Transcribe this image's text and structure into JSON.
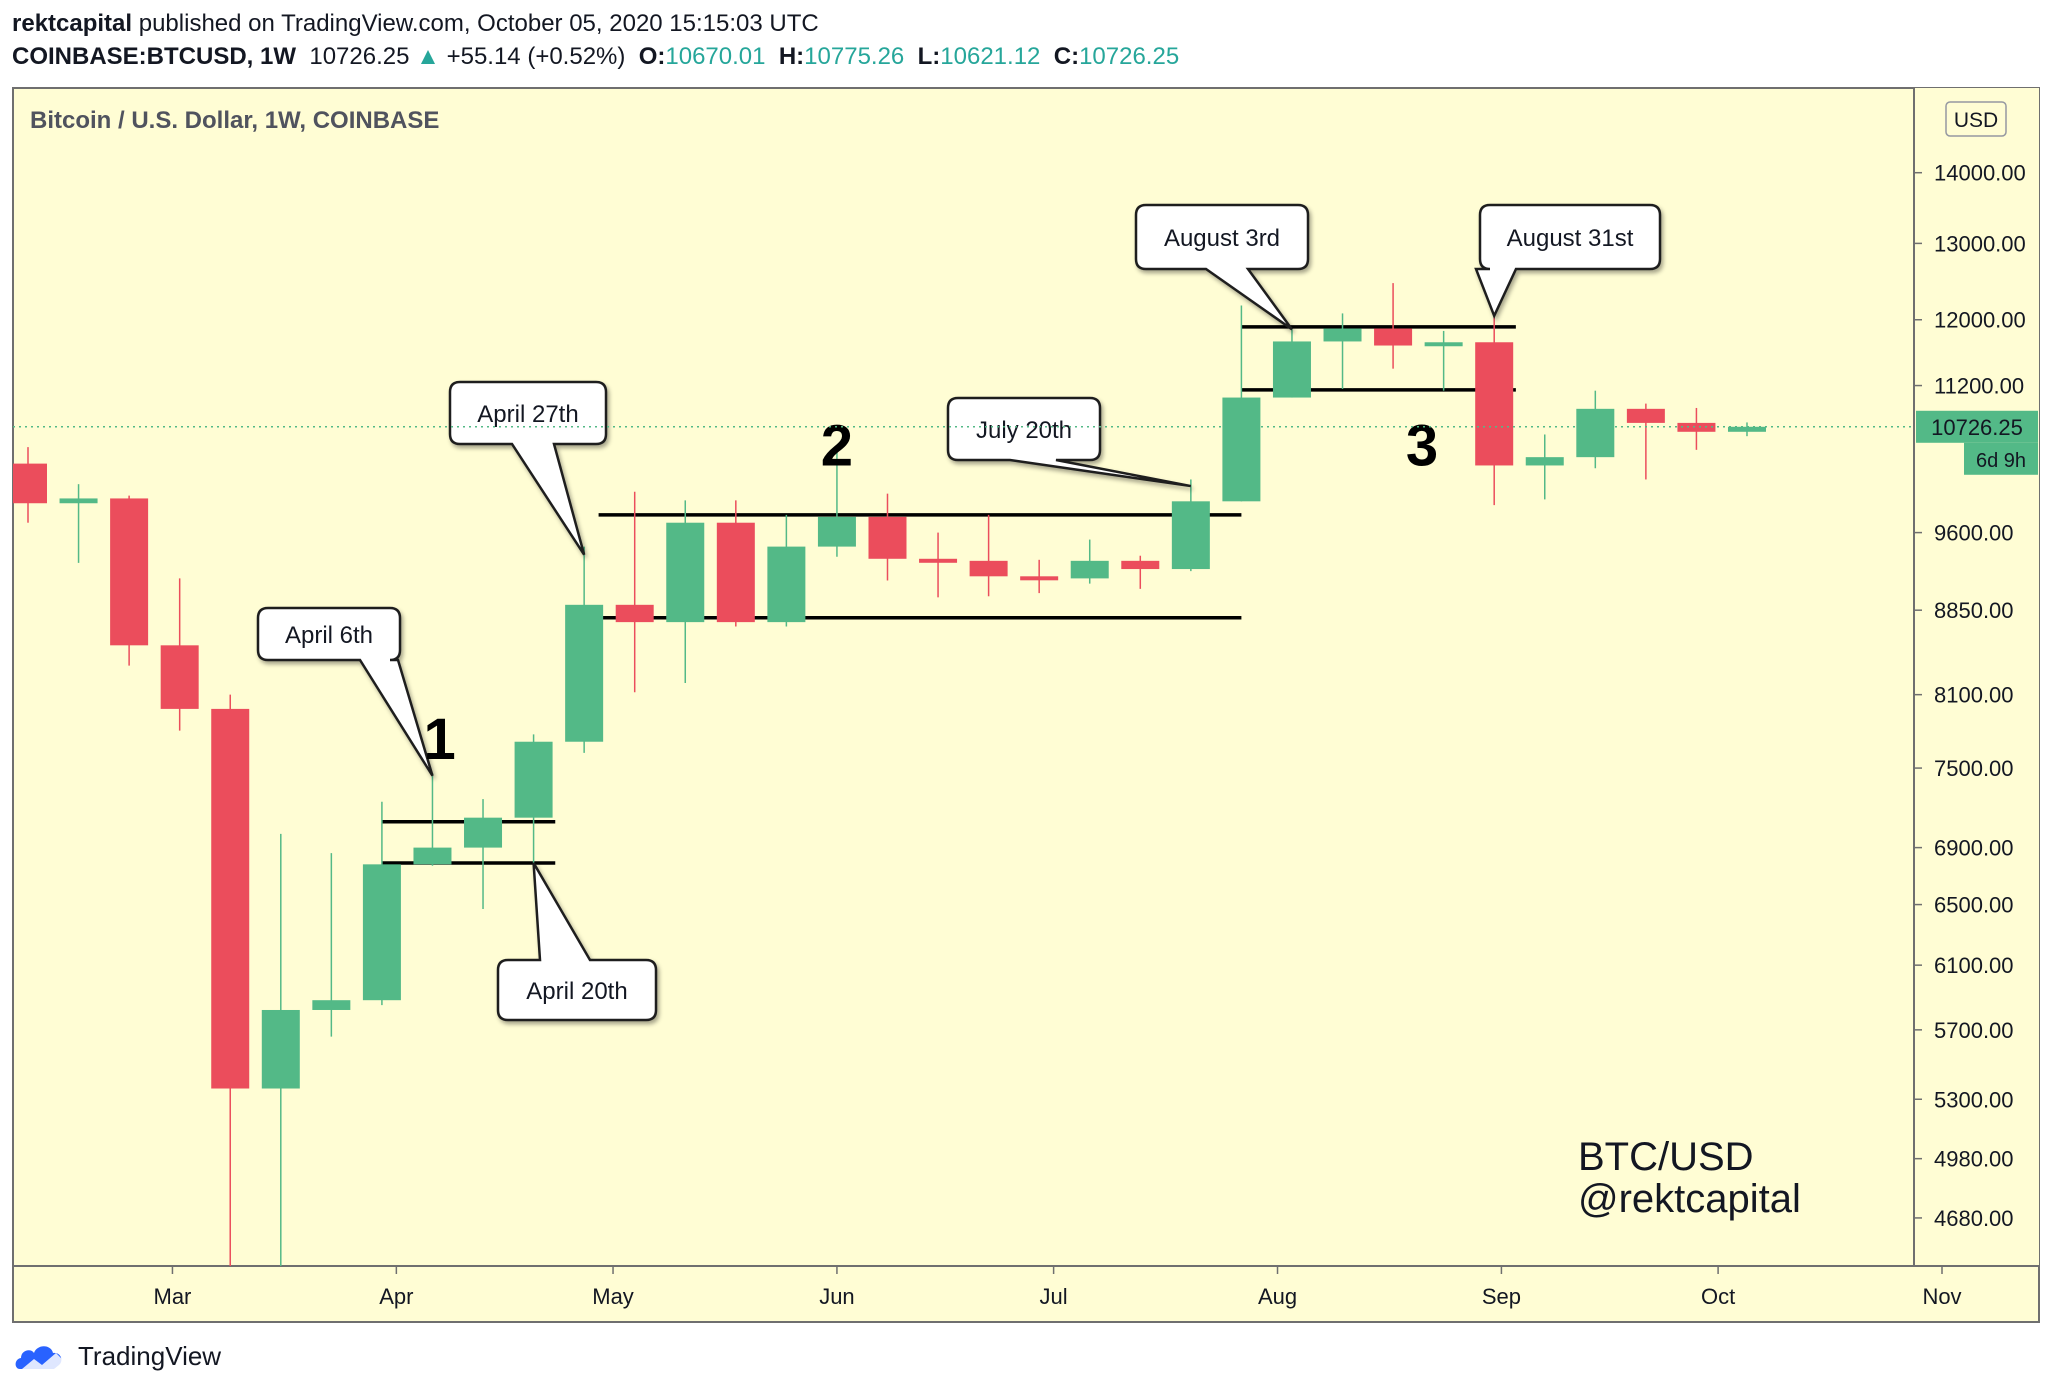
{
  "header": {
    "author": "rektcapital",
    "published_text": "published on TradingView.com, October 05, 2020 15:15:03 UTC",
    "symbol": "COINBASE:BTCUSD, 1W",
    "last": "10726.25",
    "change_arrow": "▲",
    "change": "+55.14 (+0.52%)",
    "open_label": "O:",
    "open": "10670.01",
    "high_label": "H:",
    "high": "10775.26",
    "low_label": "L:",
    "low": "10621.12",
    "close_label": "C:",
    "close": "10726.25"
  },
  "footer": {
    "brand": "TradingView",
    "logo_icon": "tradingview-cloud-icon"
  },
  "colors": {
    "background": "#fffdd4",
    "up": "#53b987",
    "down": "#eb4d5c",
    "text": "#131722",
    "last_price_label": "#53b987"
  },
  "chart_data": {
    "type": "candlestick",
    "title": "Bitcoin / U.S. Dollar, 1W, COINBASE",
    "currency_label": "USD",
    "y_scale": "log",
    "ylim": [
      4450,
      15300
    ],
    "y_ticks": [
      14000,
      13000,
      12000,
      11200,
      9600,
      8850,
      8100,
      7500,
      6900,
      6500,
      6100,
      5700,
      5300,
      4980,
      4680
    ],
    "y_tick_labels": [
      "14000.00",
      "13000.00",
      "12000.00",
      "11200.00",
      "9600.00",
      "8850.00",
      "8100.00",
      "7500.00",
      "6900.00",
      "6500.00",
      "6100.00",
      "5700.00",
      "5300.00",
      "4980.00",
      "4680.00"
    ],
    "x_start": "2020-02-10",
    "x_end": "2020-11-01",
    "x_ticks": [
      {
        "date": "2020-03-01",
        "label": "Mar"
      },
      {
        "date": "2020-04-01",
        "label": "Apr"
      },
      {
        "date": "2020-05-01",
        "label": "May"
      },
      {
        "date": "2020-06-01",
        "label": "Jun"
      },
      {
        "date": "2020-07-01",
        "label": "Jul"
      },
      {
        "date": "2020-08-01",
        "label": "Aug"
      },
      {
        "date": "2020-09-01",
        "label": "Sep"
      },
      {
        "date": "2020-10-01",
        "label": "Oct"
      },
      {
        "date": "2020-11-01",
        "label": "Nov"
      }
    ],
    "last_price": "10726.25",
    "countdown": "6d 9h",
    "candles": [
      {
        "date": "2020-02-10",
        "open": 10320,
        "high": 10500,
        "low": 9700,
        "close": 9900
      },
      {
        "date": "2020-02-17",
        "open": 9900,
        "high": 10100,
        "low": 9300,
        "close": 9950
      },
      {
        "date": "2020-02-24",
        "open": 9950,
        "high": 9980,
        "low": 8350,
        "close": 8530
      },
      {
        "date": "2020-03-02",
        "open": 8530,
        "high": 9150,
        "low": 7800,
        "close": 7980
      },
      {
        "date": "2020-03-09",
        "open": 7980,
        "high": 8100,
        "low": 3850,
        "close": 5360
      },
      {
        "date": "2020-03-16",
        "open": 5360,
        "high": 7000,
        "low": 4450,
        "close": 5820
      },
      {
        "date": "2020-03-23",
        "open": 5820,
        "high": 6860,
        "low": 5660,
        "close": 5880
      },
      {
        "date": "2020-03-30",
        "open": 5880,
        "high": 7240,
        "low": 5850,
        "close": 6780
      },
      {
        "date": "2020-04-06",
        "open": 6780,
        "high": 7460,
        "low": 6770,
        "close": 6900
      },
      {
        "date": "2020-04-13",
        "open": 6900,
        "high": 7260,
        "low": 6470,
        "close": 7120
      },
      {
        "date": "2020-04-20",
        "open": 7120,
        "high": 7770,
        "low": 6780,
        "close": 7710
      },
      {
        "date": "2020-04-27",
        "open": 7710,
        "high": 9460,
        "low": 7620,
        "close": 8900
      },
      {
        "date": "2020-05-04",
        "open": 8900,
        "high": 10020,
        "low": 8120,
        "close": 8740
      },
      {
        "date": "2020-05-11",
        "open": 8740,
        "high": 9930,
        "low": 8200,
        "close": 9700
      },
      {
        "date": "2020-05-18",
        "open": 9700,
        "high": 9930,
        "low": 8700,
        "close": 8740
      },
      {
        "date": "2020-05-25",
        "open": 8740,
        "high": 9780,
        "low": 8700,
        "close": 9460
      },
      {
        "date": "2020-06-01",
        "open": 9460,
        "high": 10440,
        "low": 9360,
        "close": 9760
      },
      {
        "date": "2020-06-08",
        "open": 9760,
        "high": 10000,
        "low": 9130,
        "close": 9340
      },
      {
        "date": "2020-06-15",
        "open": 9340,
        "high": 9600,
        "low": 8970,
        "close": 9320
      },
      {
        "date": "2020-06-22",
        "open": 9320,
        "high": 9780,
        "low": 8980,
        "close": 9170
      },
      {
        "date": "2020-06-29",
        "open": 9170,
        "high": 9330,
        "low": 9010,
        "close": 9150
      },
      {
        "date": "2020-07-06",
        "open": 9150,
        "high": 9530,
        "low": 9100,
        "close": 9320
      },
      {
        "date": "2020-07-13",
        "open": 9320,
        "high": 9370,
        "low": 9050,
        "close": 9240
      },
      {
        "date": "2020-07-20",
        "open": 9240,
        "high": 10150,
        "low": 9220,
        "close": 9920
      },
      {
        "date": "2020-07-27",
        "open": 9920,
        "high": 12180,
        "low": 9920,
        "close": 11060
      },
      {
        "date": "2020-08-03",
        "open": 11060,
        "high": 11880,
        "low": 11060,
        "close": 11730
      },
      {
        "date": "2020-08-10",
        "open": 11730,
        "high": 12080,
        "low": 11160,
        "close": 11890
      },
      {
        "date": "2020-08-17",
        "open": 11890,
        "high": 12470,
        "low": 11400,
        "close": 11680
      },
      {
        "date": "2020-08-24",
        "open": 11680,
        "high": 11860,
        "low": 11140,
        "close": 11720
      },
      {
        "date": "2020-08-31",
        "open": 11720,
        "high": 12050,
        "low": 9880,
        "close": 10300
      },
      {
        "date": "2020-09-07",
        "open": 10300,
        "high": 10640,
        "low": 9940,
        "close": 10390
      },
      {
        "date": "2020-09-14",
        "open": 10390,
        "high": 11140,
        "low": 10270,
        "close": 10930
      },
      {
        "date": "2020-09-21",
        "open": 10930,
        "high": 10990,
        "low": 10150,
        "close": 10770
      },
      {
        "date": "2020-09-28",
        "open": 10770,
        "high": 10940,
        "low": 10470,
        "close": 10670
      },
      {
        "date": "2020-10-05",
        "open": 10670,
        "high": 10775.26,
        "low": 10621.12,
        "close": 10726.25
      }
    ],
    "annotations": {
      "callouts": [
        {
          "text": "April 6th",
          "target_date": "2020-04-06",
          "target_price": 7440
        },
        {
          "text": "April 20th",
          "target_date": "2020-04-20",
          "target_price": 6790
        },
        {
          "text": "April 27th",
          "target_date": "2020-04-27",
          "target_price": 9380
        },
        {
          "text": "July 20th",
          "target_date": "2020-07-20",
          "target_price": 10080
        },
        {
          "text": "August 3rd",
          "target_date": "2020-08-03",
          "target_price": 11880
        },
        {
          "text": "August 31st",
          "target_date": "2020-08-31",
          "target_price": 12050
        }
      ],
      "numbers": [
        {
          "text": "1",
          "date": "2020-04-07",
          "price": 7570
        },
        {
          "text": "2",
          "date": "2020-06-01",
          "price": 10300
        },
        {
          "text": "3",
          "date": "2020-08-21",
          "price": 10300
        }
      ],
      "levels": [
        {
          "price": 7090,
          "from": "2020-03-30",
          "to": "2020-04-23"
        },
        {
          "price": 6790,
          "from": "2020-03-30",
          "to": "2020-04-23"
        },
        {
          "price": 9780,
          "from": "2020-04-29",
          "to": "2020-07-27"
        },
        {
          "price": 8780,
          "from": "2020-04-29",
          "to": "2020-07-27"
        },
        {
          "price": 11910,
          "from": "2020-07-27",
          "to": "2020-09-03"
        },
        {
          "price": 11150,
          "from": "2020-07-27",
          "to": "2020-09-03"
        }
      ],
      "watermark": [
        "BTC/USD",
        "@rektcapital"
      ]
    }
  }
}
